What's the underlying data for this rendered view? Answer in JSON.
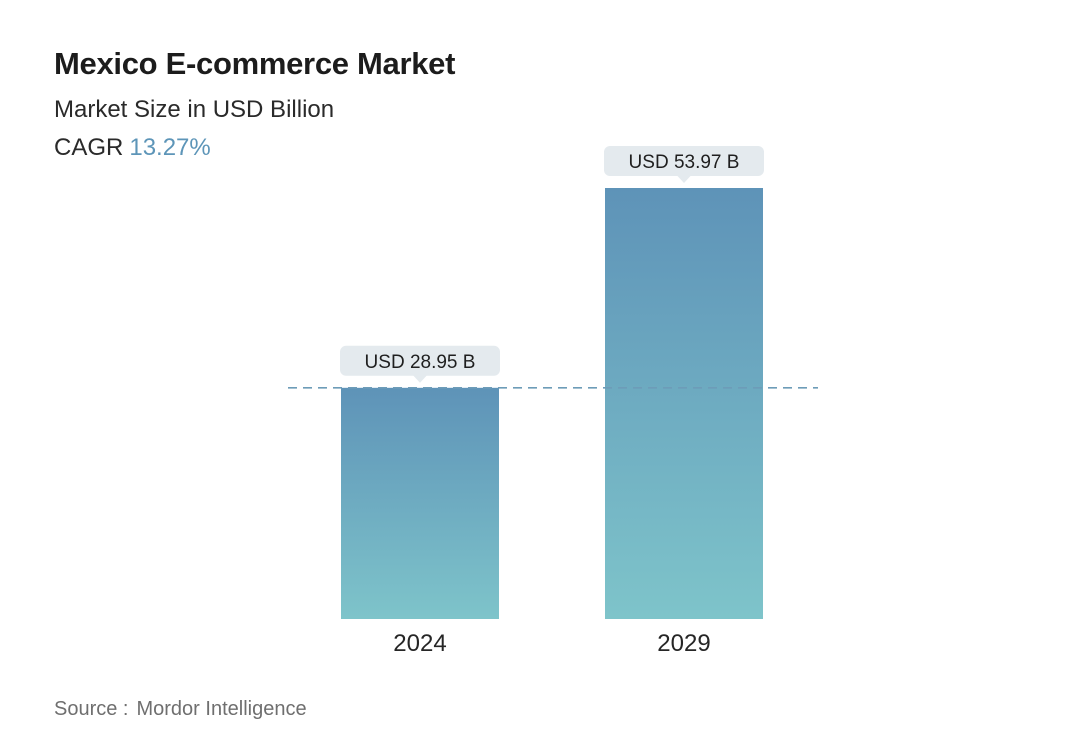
{
  "header": {
    "title": "Mexico E-commerce Market",
    "subtitle": "Market Size in USD Billion",
    "cagr_label": "CAGR",
    "cagr_value": "13.27%"
  },
  "footer": {
    "source_label": "Source :",
    "source_value": "Mordor Intelligence"
  },
  "colors": {
    "bar_top": "#5e93b8",
    "bar_bottom": "#7ec4ca",
    "label_bg": "#e4eaee",
    "dashed_line": "#6d9cb8",
    "cagr_accent": "#5d95b8"
  },
  "chart_data": {
    "type": "bar",
    "title": "Mexico E-commerce Market",
    "subtitle": "Market Size in USD Billion",
    "categories": [
      "2024",
      "2029"
    ],
    "values": [
      28.95,
      53.97
    ],
    "data_labels": [
      "USD 28.95 B",
      "USD 53.97 B"
    ],
    "xlabel": "",
    "ylabel": "Market Size in USD Billion",
    "ylim": [
      0,
      53.97
    ],
    "grid": false,
    "legend": "none",
    "reference_line": {
      "value": 28.95,
      "style": "dashed"
    }
  }
}
